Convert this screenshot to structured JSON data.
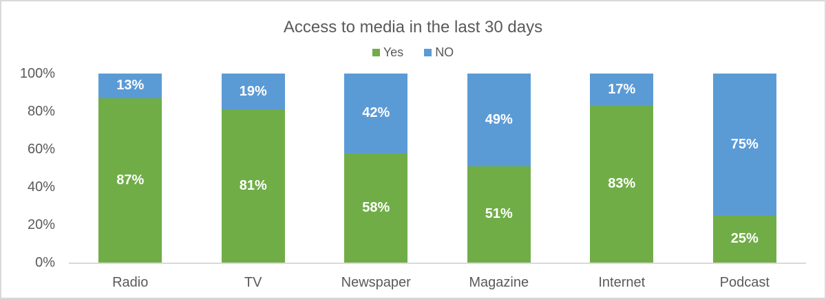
{
  "chart": {
    "title": "Access to media in the last 30 days",
    "colors": {
      "yes_green": "#70AD47",
      "no_blue": "#5B9BD5",
      "text_gray": "#595959",
      "axis_line": "#D9D9D9",
      "frame_border": "#D9D9D9",
      "data_label": "#FFFFFF"
    },
    "legend": [
      {
        "label": "Yes",
        "color": "#70AD47"
      },
      {
        "label": "NO",
        "color": "#5B9BD5"
      }
    ]
  },
  "chart_data": {
    "type": "bar",
    "stacked": true,
    "percent_total": 100,
    "title": "Access to media in the last 30 days",
    "categories": [
      "Radio",
      "TV",
      "Newspaper",
      "Magazine",
      "Internet",
      "Podcast"
    ],
    "series": [
      {
        "name": "Yes",
        "color": "#70AD47",
        "values": [
          87,
          81,
          58,
          51,
          83,
          25
        ]
      },
      {
        "name": "NO",
        "color": "#5B9BD5",
        "values": [
          13,
          19,
          42,
          49,
          17,
          75
        ]
      }
    ],
    "data_labels": {
      "Yes": [
        "87%",
        "81%",
        "58%",
        "51%",
        "83%",
        "25%"
      ],
      "NO": [
        "13%",
        "19%",
        "42%",
        "49%",
        "17%",
        "75%"
      ]
    },
    "xlabel": "",
    "ylabel": "",
    "ylim": [
      0,
      100
    ],
    "yticks": [
      "0%",
      "20%",
      "40%",
      "60%",
      "80%",
      "100%"
    ],
    "grid": false,
    "legend_position": "top"
  }
}
